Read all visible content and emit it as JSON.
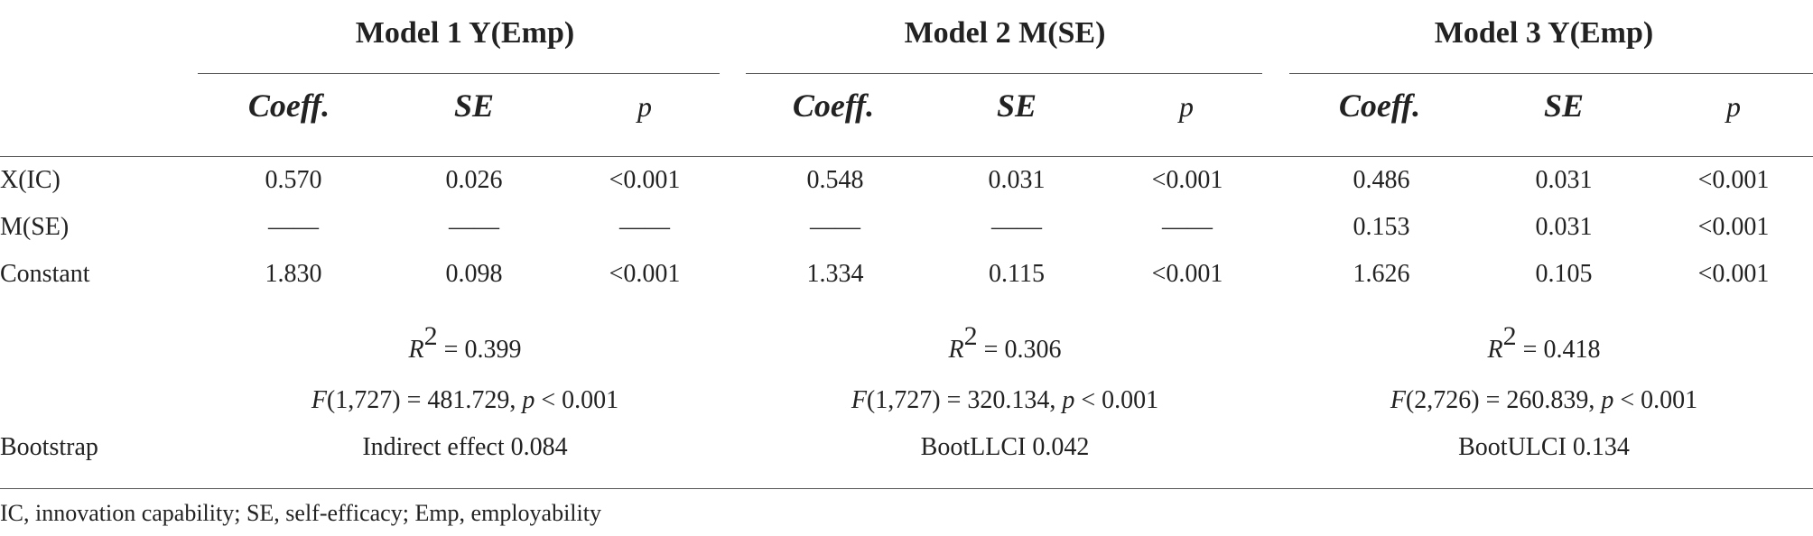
{
  "models": [
    {
      "title": "Model 1 Y(Emp)",
      "r2_label": "R",
      "r2_exp": "2",
      "r2_value": " = 0.399",
      "f_prefix": "F",
      "f_text": "(1,727) = 481.729, ",
      "p_label": "p",
      "p_text": " < 0.001",
      "bootstrap": "Indirect effect 0.084"
    },
    {
      "title": "Model 2 M(SE)",
      "r2_label": "R",
      "r2_exp": "2",
      "r2_value": " = 0.306",
      "f_prefix": "F",
      "f_text": "(1,727) = 320.134, ",
      "p_label": "p",
      "p_text": " < 0.001",
      "bootstrap": "BootLLCI 0.042"
    },
    {
      "title": "Model 3 Y(Emp)",
      "r2_label": "R",
      "r2_exp": "2",
      "r2_value": " = 0.418",
      "f_prefix": "F",
      "f_text": "(2,726) = 260.839, ",
      "p_label": "p",
      "p_text": " < 0.001",
      "bootstrap": "BootULCI 0.134"
    }
  ],
  "column_headers": [
    "Coeff.",
    "SE",
    "p"
  ],
  "rows": [
    {
      "label": "X(IC)",
      "cells": [
        "0.570",
        "0.026",
        "<0.001",
        "0.548",
        "0.031",
        "<0.001",
        "0.486",
        "0.031",
        "<0.001"
      ]
    },
    {
      "label": "M(SE)",
      "cells": [
        "——",
        "——",
        "——",
        "——",
        "——",
        "——",
        "0.153",
        "0.031",
        "<0.001"
      ]
    },
    {
      "label": "Constant",
      "cells": [
        "1.830",
        "0.098",
        "<0.001",
        "1.334",
        "0.115",
        "<0.001",
        "1.626",
        "0.105",
        "<0.001"
      ]
    }
  ],
  "bootstrap_label": "Bootstrap",
  "note": "IC, innovation capability; SE, self-efficacy; Emp, employability"
}
